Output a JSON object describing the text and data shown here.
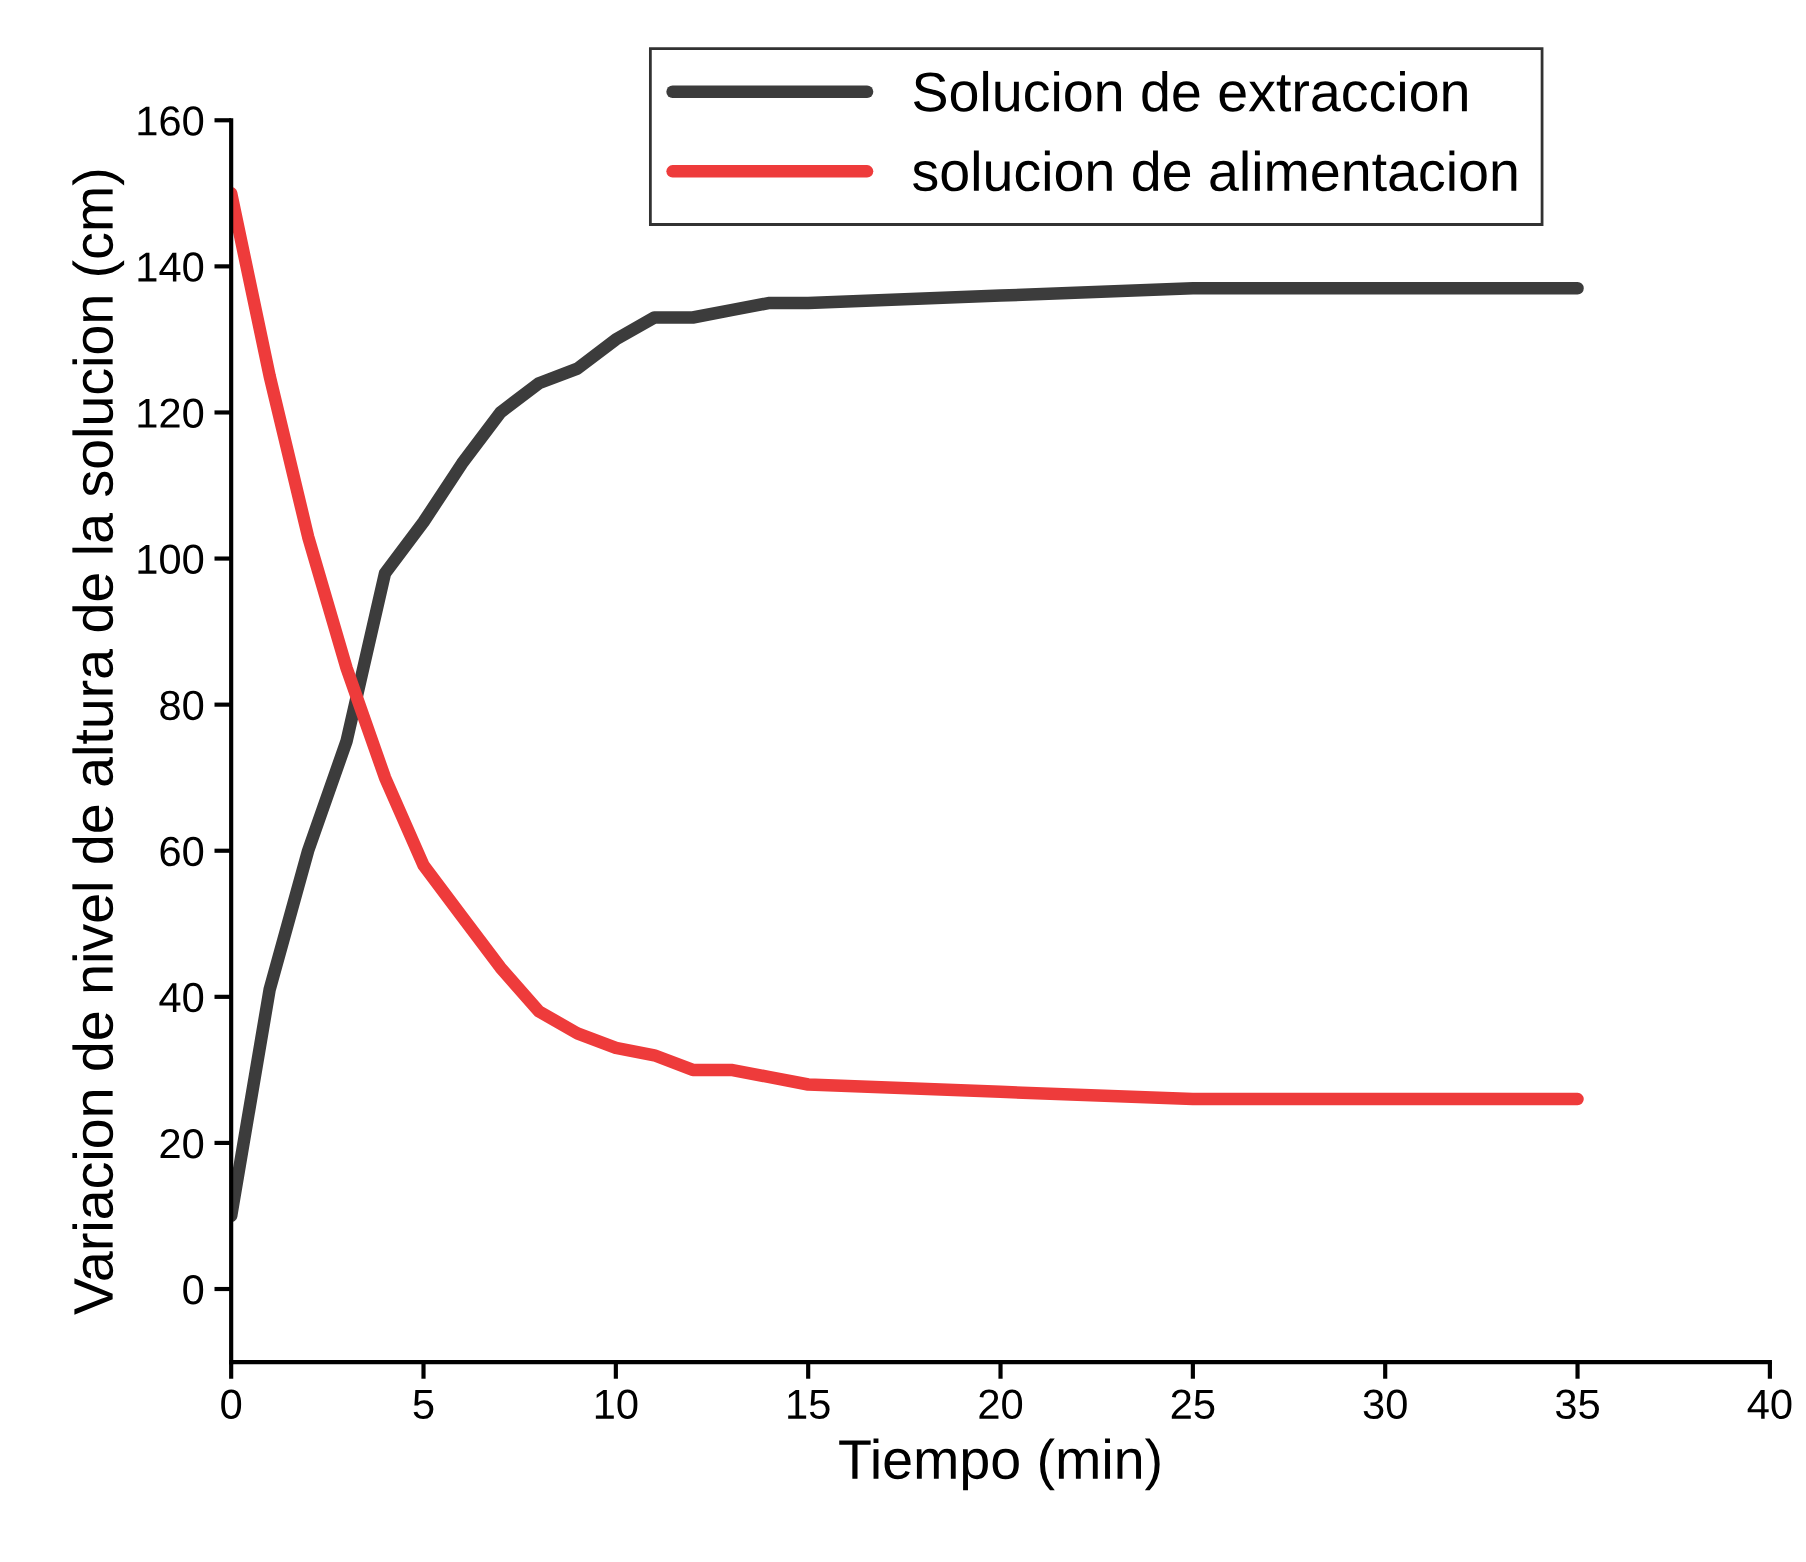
{
  "chart_data": {
    "type": "line",
    "xlabel": "Tiempo (min)",
    "ylabel": "Variacion de nivel de altura de la solucion (cm)",
    "x": [
      0,
      1,
      2,
      3,
      4,
      5,
      6,
      7,
      8,
      9,
      10,
      11,
      12,
      13,
      14,
      15,
      20,
      25,
      30,
      35
    ],
    "series": [
      {
        "name": "Solucion de extraccion",
        "color": "#3c3c3c",
        "values": [
          10,
          41,
          60,
          75,
          98,
          105,
          113,
          120,
          124,
          126,
          130,
          133,
          133,
          134,
          135,
          135,
          136,
          137,
          137,
          137
        ]
      },
      {
        "name": "solucion de alimentacion",
        "color": "#ee3b3b",
        "values": [
          150,
          125,
          103,
          85,
          70,
          58,
          51,
          44,
          38,
          35,
          33,
          32,
          30,
          30,
          29,
          28,
          27,
          26,
          26,
          26
        ]
      }
    ],
    "xlim": [
      0,
      40
    ],
    "xticks": [
      0,
      5,
      10,
      15,
      20,
      25,
      30,
      35,
      40
    ],
    "ylim": [
      -10,
      160
    ],
    "yticks": [
      0,
      20,
      40,
      60,
      80,
      100,
      120,
      140,
      160
    ],
    "legend": "top right",
    "grid": false,
    "line_style": "solid",
    "marker": "none"
  }
}
